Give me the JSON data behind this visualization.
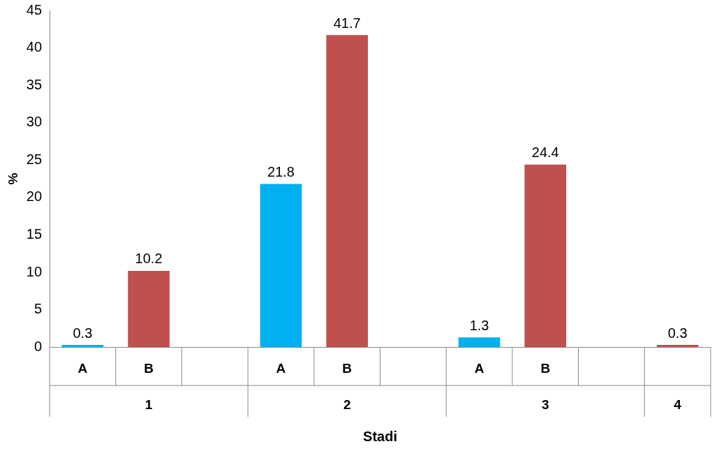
{
  "chart_data": {
    "type": "bar",
    "xlabel": "Stadi",
    "ylabel": "%",
    "categories": [
      "A",
      "B",
      null,
      "A",
      "B",
      null,
      "A",
      "B",
      null,
      null
    ],
    "values": [
      0.3,
      10.2,
      null,
      21.8,
      41.7,
      null,
      1.3,
      24.4,
      null,
      0.3
    ],
    "colors": [
      "#00b0f0",
      "#c0504d",
      "#c0504d",
      "#00b0f0",
      "#c0504d",
      "#c0504d",
      "#00b0f0",
      "#c0504d",
      "#c0504d",
      "#c0504d"
    ],
    "ylim": [
      0,
      45
    ],
    "yticks": [
      0,
      5,
      10,
      15,
      20,
      25,
      30,
      35,
      40,
      45
    ],
    "annotations": [
      "1",
      "2",
      "3",
      "4"
    ],
    "data_labels": true,
    "grid": false,
    "legend": false
  }
}
